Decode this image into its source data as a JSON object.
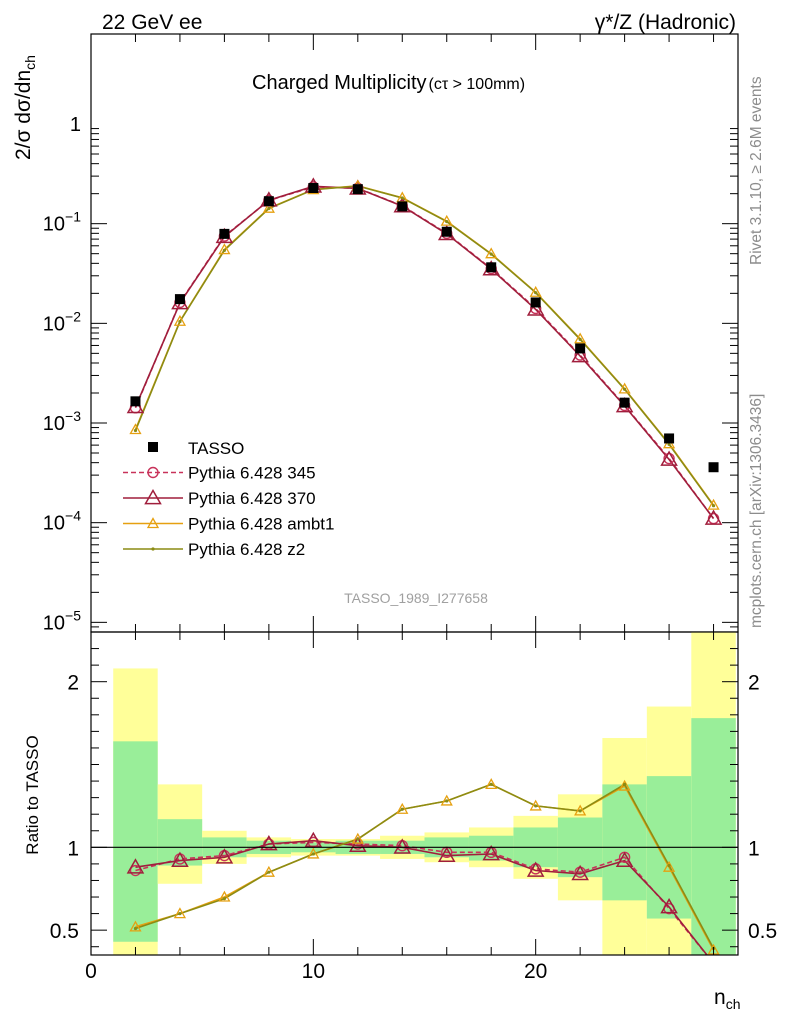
{
  "header": {
    "left": "22 GeV ee",
    "right": "γ*/Z (Hadronic)"
  },
  "side_text": {
    "rivet": "Rivet 3.1.10, ≥ 2.6M events",
    "mcplots": "mcplots.cern.ch [arXiv:1306.3436]"
  },
  "chart_data": [
    {
      "type": "scatter",
      "panel": "main",
      "title": "Charged Multiplicity",
      "title_suffix": "(cτ > 100mm)",
      "ylabel": "2/σ dσ/dn",
      "ylabel_sub": "ch",
      "yscale": "log",
      "ylim": [
        8e-06,
        8
      ],
      "xlim": [
        0,
        29.1
      ],
      "yticks": [
        {
          "value": 1e-05,
          "base": "10",
          "exp": "−5"
        },
        {
          "value": 0.0001,
          "base": "10",
          "exp": "−4"
        },
        {
          "value": 0.001,
          "base": "10",
          "exp": "−3"
        },
        {
          "value": 0.01,
          "base": "10",
          "exp": "−2"
        },
        {
          "value": 0.1,
          "base": "10",
          "exp": "−1"
        },
        {
          "value": 1,
          "base": "1",
          "exp": ""
        }
      ],
      "watermark": "TASSO_1989_I277658",
      "data": {
        "name": "TASSO",
        "color": "#000000",
        "x": [
          2,
          4,
          6,
          8,
          10,
          12,
          14,
          16,
          18,
          20,
          22,
          24,
          26,
          28
        ],
        "y": [
          0.00165,
          0.0175,
          0.079,
          0.168,
          0.228,
          0.222,
          0.149,
          0.083,
          0.0365,
          0.0162,
          0.0056,
          0.0016,
          0.0007,
          0.00036
        ]
      },
      "series": [
        {
          "name": "Pythia 6.428 345",
          "color": "#c8325a",
          "marker": "circle",
          "dash": "5,3",
          "y": [
            0.00142,
            0.0162,
            0.075,
            0.171,
            0.234,
            0.227,
            0.151,
            0.08,
            0.0354,
            0.0141,
            0.0048,
            0.0015,
            0.00044,
            0.00011
          ]
        },
        {
          "name": "Pythia 6.428 370",
          "color": "#a01e3c",
          "marker": "triangle",
          "dash": "",
          "y": [
            0.00145,
            0.016,
            0.074,
            0.172,
            0.237,
            0.226,
            0.15,
            0.079,
            0.035,
            0.0138,
            0.0047,
            0.00148,
            0.00043,
            0.00011
          ]
        },
        {
          "name": "Pythia 6.428 ambt1",
          "color": "#e6a010",
          "marker": "triangle-small",
          "dash": "",
          "y": [
            0.00086,
            0.0105,
            0.055,
            0.143,
            0.22,
            0.24,
            0.182,
            0.106,
            0.05,
            0.0205,
            0.007,
            0.0022,
            0.00062,
            0.00015
          ]
        },
        {
          "name": "Pythia 6.428 z2",
          "color": "#8c8c14",
          "marker": "dot",
          "dash": "",
          "y": [
            0.00084,
            0.0104,
            0.054,
            0.142,
            0.219,
            0.239,
            0.181,
            0.105,
            0.0495,
            0.0203,
            0.0069,
            0.00218,
            0.00061,
            0.000148
          ]
        }
      ]
    },
    {
      "type": "line",
      "panel": "ratio",
      "ylabel": "Ratio to TASSO",
      "xlabel": "n",
      "xlabel_sub": "ch",
      "ylim": [
        0.35,
        2.3
      ],
      "xlim": [
        0,
        29.1
      ],
      "xticks": [
        0,
        10,
        20
      ],
      "yticks": [
        0.5,
        1,
        2
      ],
      "reference": 1,
      "bands": [
        {
          "x0": 1,
          "x1": 3,
          "g_lo": 0.43,
          "g_hi": 1.64,
          "y_lo": 0.35,
          "y_hi": 2.08
        },
        {
          "x0": 3,
          "x1": 5,
          "g_lo": 0.89,
          "g_hi": 1.17,
          "y_lo": 0.78,
          "y_hi": 1.38
        },
        {
          "x0": 5,
          "x1": 7,
          "g_lo": 0.94,
          "g_hi": 1.06,
          "y_lo": 0.9,
          "y_hi": 1.1
        },
        {
          "x0": 7,
          "x1": 9,
          "g_lo": 0.96,
          "g_hi": 1.04,
          "y_lo": 0.94,
          "y_hi": 1.06
        },
        {
          "x0": 9,
          "x1": 11,
          "g_lo": 0.97,
          "g_hi": 1.03,
          "y_lo": 0.95,
          "y_hi": 1.05
        },
        {
          "x0": 11,
          "x1": 13,
          "g_lo": 0.96,
          "g_hi": 1.04,
          "y_lo": 0.95,
          "y_hi": 1.05
        },
        {
          "x0": 13,
          "x1": 15,
          "g_lo": 0.96,
          "g_hi": 1.04,
          "y_lo": 0.93,
          "y_hi": 1.07
        },
        {
          "x0": 15,
          "x1": 17,
          "g_lo": 0.94,
          "g_hi": 1.06,
          "y_lo": 0.91,
          "y_hi": 1.09
        },
        {
          "x0": 17,
          "x1": 19,
          "g_lo": 0.92,
          "g_hi": 1.07,
          "y_lo": 0.88,
          "y_hi": 1.12
        },
        {
          "x0": 19,
          "x1": 21,
          "g_lo": 0.88,
          "g_hi": 1.12,
          "y_lo": 0.81,
          "y_hi": 1.19
        },
        {
          "x0": 21,
          "x1": 23,
          "g_lo": 0.82,
          "g_hi": 1.18,
          "y_lo": 0.68,
          "y_hi": 1.32
        },
        {
          "x0": 23,
          "x1": 25,
          "g_lo": 0.68,
          "g_hi": 1.38,
          "y_lo": 0.35,
          "y_hi": 1.66
        },
        {
          "x0": 25,
          "x1": 27,
          "g_lo": 0.57,
          "g_hi": 1.43,
          "y_lo": 0.35,
          "y_hi": 1.85
        },
        {
          "x0": 27,
          "x1": 29,
          "g_lo": 0.35,
          "g_hi": 1.78,
          "y_lo": 0.35,
          "y_hi": 2.3
        }
      ],
      "series": [
        {
          "name": "Pythia 6.428 345",
          "color": "#c8325a",
          "marker": "circle",
          "dash": "5,3",
          "y": [
            0.86,
            0.93,
            0.95,
            1.02,
            1.03,
            1.02,
            1.01,
            0.97,
            0.97,
            0.87,
            0.85,
            0.94,
            0.63,
            0.3
          ]
        },
        {
          "name": "Pythia 6.428 370",
          "color": "#a01e3c",
          "marker": "triangle",
          "dash": "",
          "y": [
            0.88,
            0.92,
            0.94,
            1.02,
            1.04,
            1.01,
            1.0,
            0.95,
            0.96,
            0.86,
            0.84,
            0.92,
            0.64,
            0.3
          ]
        },
        {
          "name": "Pythia 6.428 ambt1",
          "color": "#e6a010",
          "marker": "triangle-small",
          "dash": "",
          "y": [
            0.52,
            0.6,
            0.7,
            0.85,
            0.96,
            1.05,
            1.23,
            1.28,
            1.38,
            1.25,
            1.22,
            1.37,
            0.88,
            0.38
          ]
        },
        {
          "name": "Pythia 6.428 z2",
          "color": "#8c8c14",
          "marker": "dot",
          "dash": "",
          "y": [
            0.51,
            0.6,
            0.69,
            0.85,
            0.96,
            1.05,
            1.23,
            1.28,
            1.38,
            1.25,
            1.22,
            1.38,
            0.89,
            0.39
          ]
        }
      ]
    }
  ]
}
